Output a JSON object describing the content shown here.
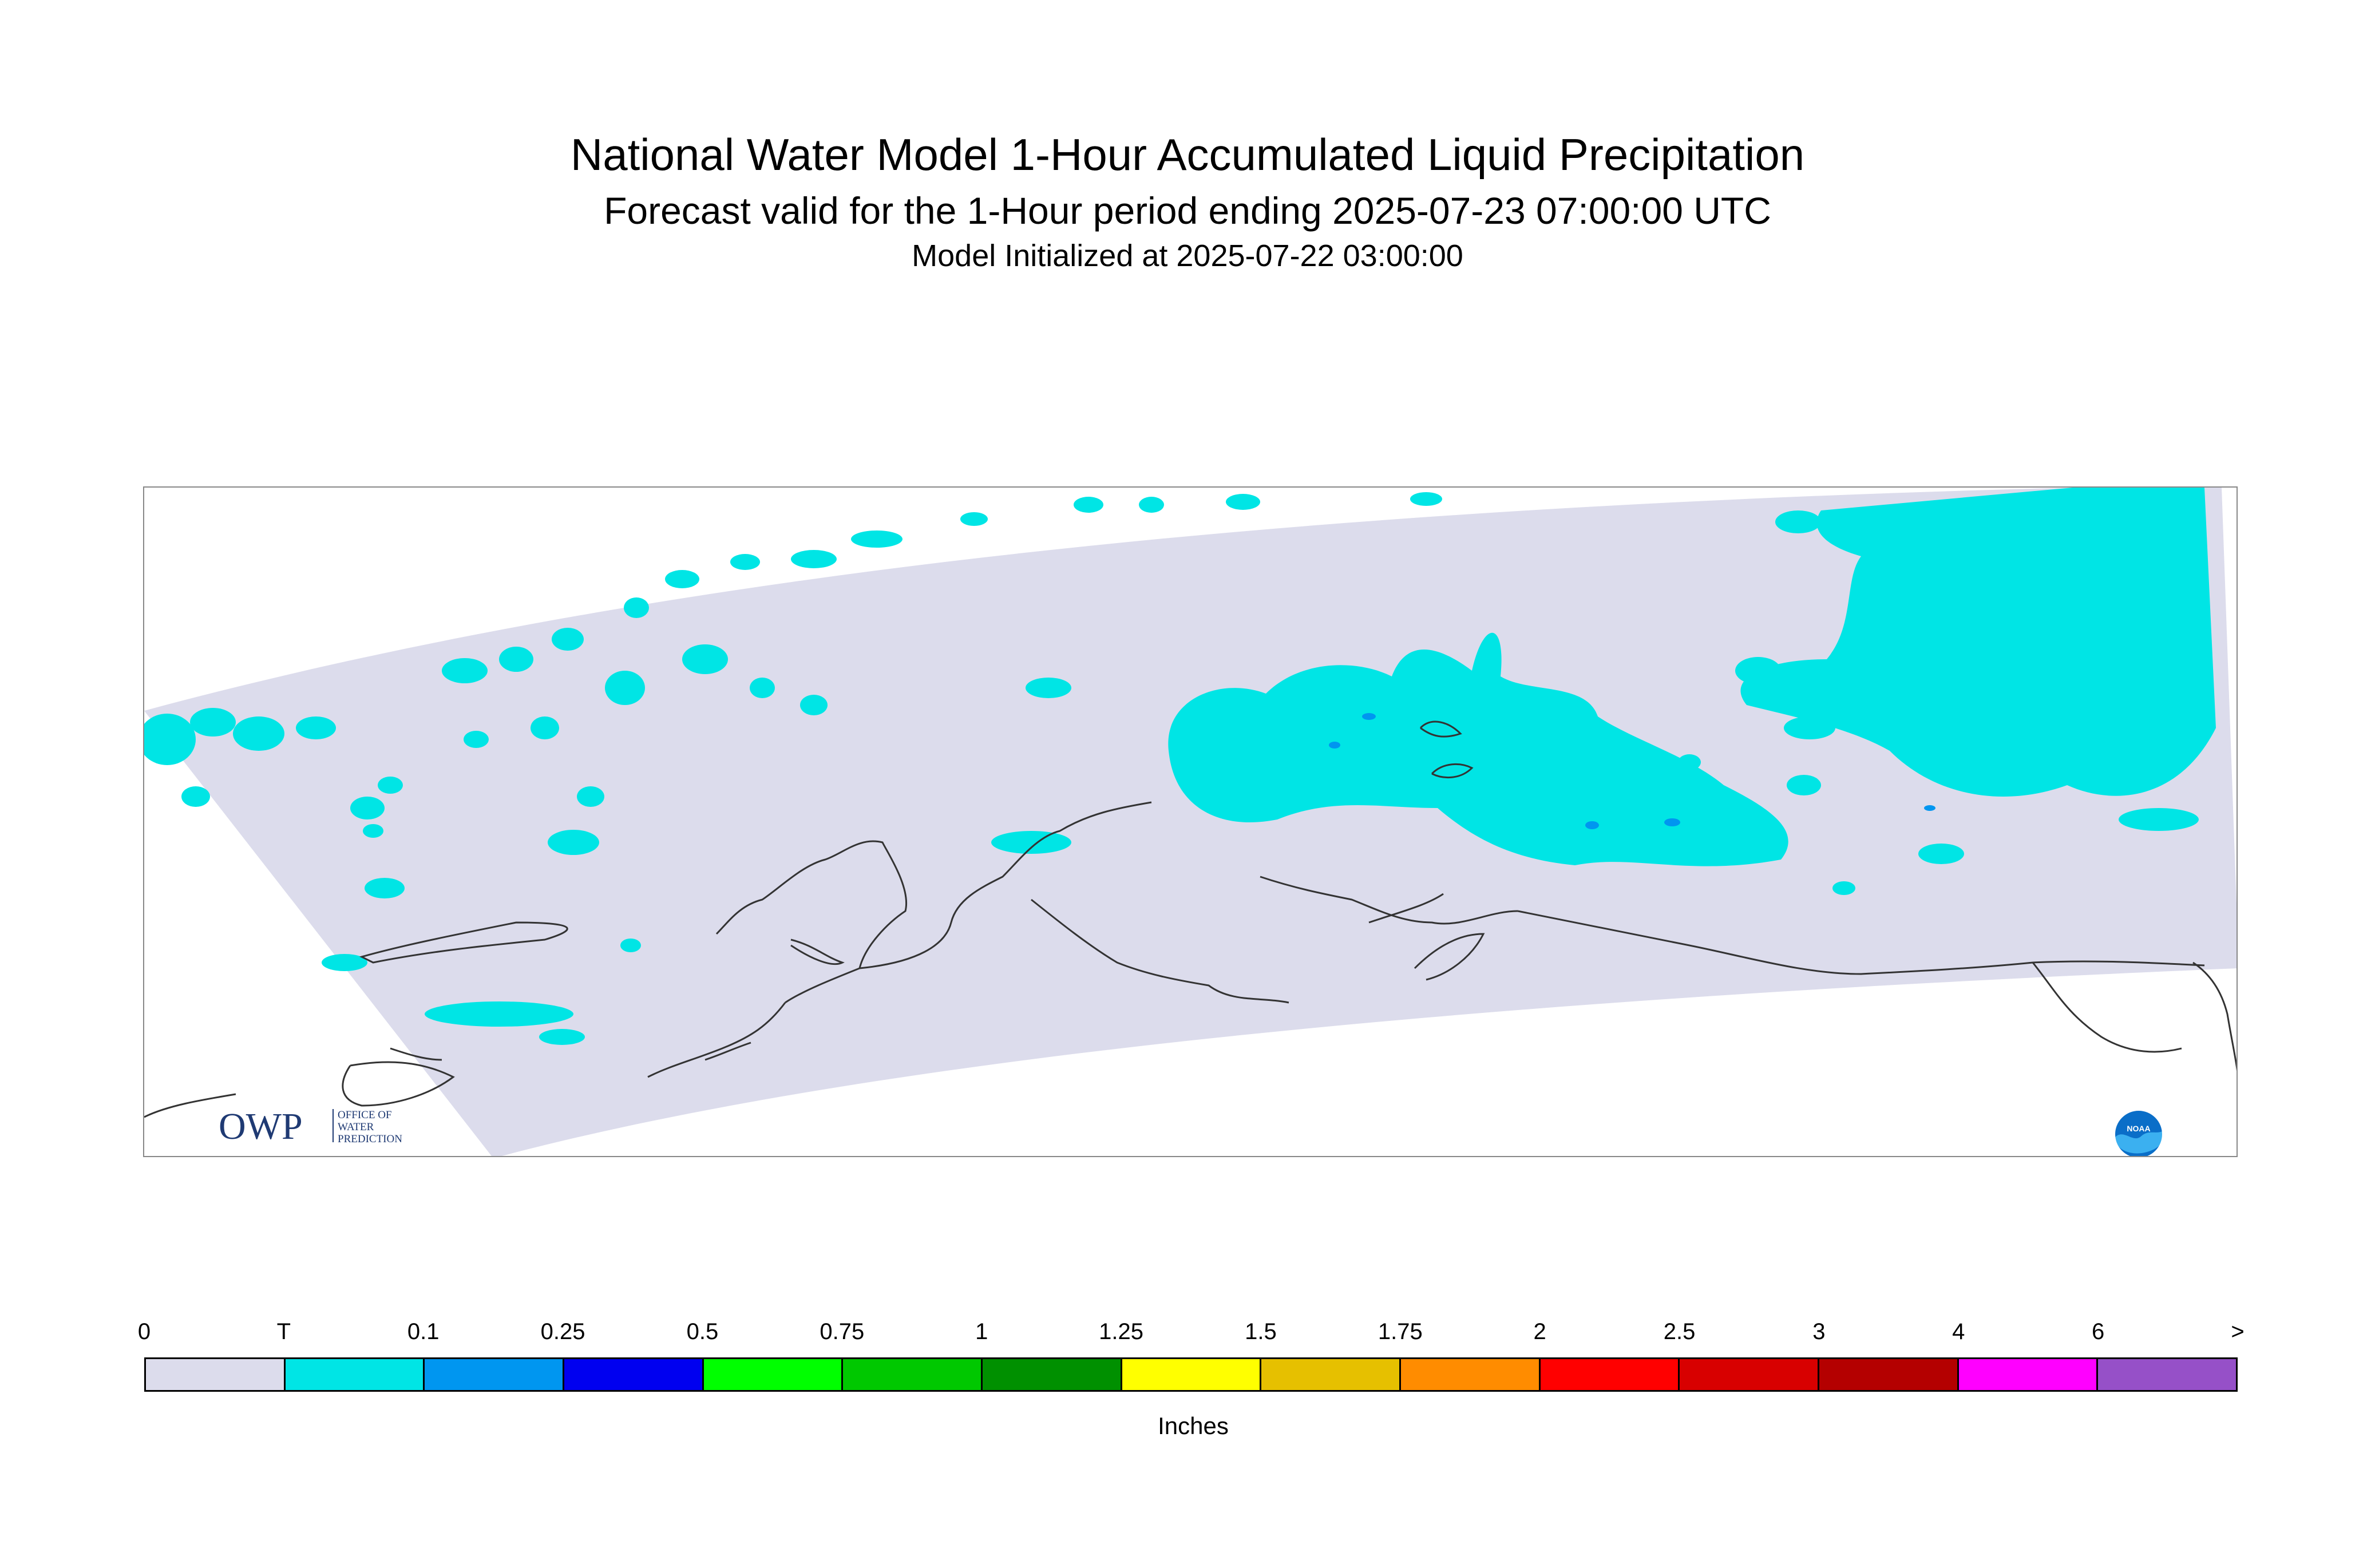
{
  "header": {
    "title": "National Water Model 1-Hour Accumulated Liquid Precipitation",
    "subtitle": "Forecast valid for the 1-Hour period ending 2025-07-23 07:00:00 UTC",
    "init": "Model Initialized at 2025-07-22 03:00:00"
  },
  "logos": {
    "owp_letters": "OWP",
    "owp_line1": "OFFICE OF",
    "owp_line2": "WATER",
    "owp_line3": "PREDICTION",
    "noaa": "NOAA"
  },
  "legend": {
    "labels": [
      "0",
      "T",
      "0.1",
      "0.25",
      "0.5",
      "0.75",
      "1",
      "1.25",
      "1.5",
      "1.75",
      "2",
      "2.5",
      "3",
      "4",
      "6",
      ">"
    ],
    "colors": [
      "#dcdcec",
      "#00e5e5",
      "#0096f0",
      "#0000f0",
      "#00ff00",
      "#00c800",
      "#009000",
      "#ffff00",
      "#e6c000",
      "#ff8c00",
      "#ff0000",
      "#d80000",
      "#b40000",
      "#ff00ff",
      "#9650c8"
    ],
    "units": "Inches"
  },
  "map": {
    "domain_color": "#dcdcec",
    "trace_color": "#00e5e5",
    "light_color": "#0096f0",
    "coast_color": "#333333"
  }
}
